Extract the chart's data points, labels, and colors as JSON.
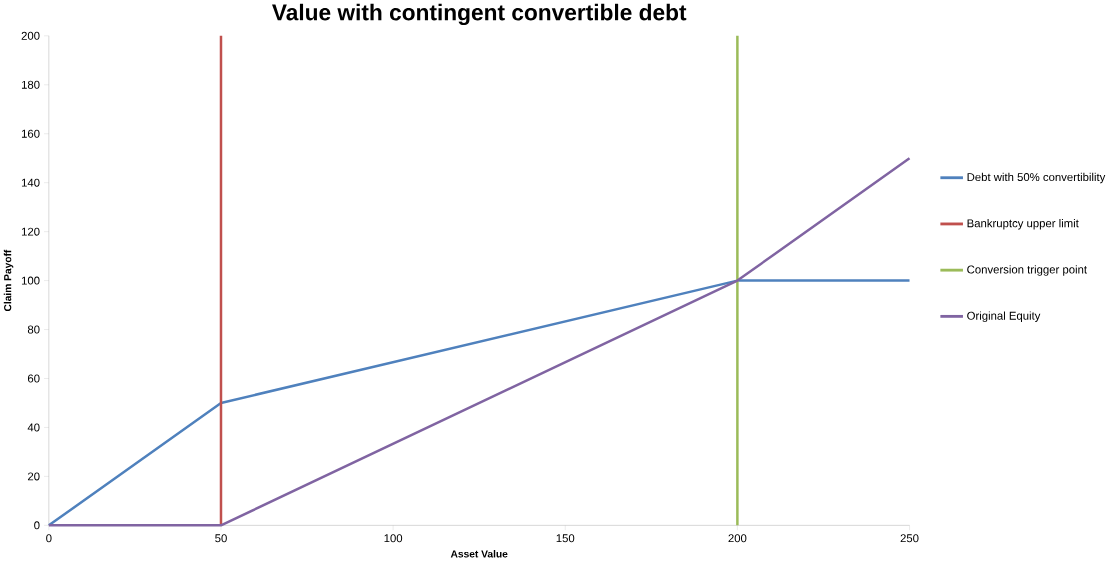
{
  "chart_data": {
    "type": "line",
    "title": "Value with contingent convertible debt",
    "xlabel": "Asset Value",
    "ylabel": "Claim Payoff",
    "xlim": [
      0,
      250
    ],
    "xticks": [
      0,
      50,
      100,
      150,
      200,
      250
    ],
    "ylim": [
      0,
      200
    ],
    "yticks": [
      0,
      20,
      40,
      60,
      80,
      100,
      120,
      140,
      160,
      180,
      200
    ],
    "grid": false,
    "legend": "right",
    "marker": "none",
    "line_style": "solid",
    "series": [
      {
        "name": "Debt with 50% convertibility",
        "color": "#4f81bd",
        "x": [
          0,
          50,
          200,
          250
        ],
        "values": [
          0,
          50,
          100,
          100
        ]
      },
      {
        "name": "Bankruptcy upper limit",
        "color": "#c0504d",
        "x": [
          50,
          50
        ],
        "values": [
          0,
          200
        ]
      },
      {
        "name": "Conversion trigger point",
        "color": "#9bbb59",
        "x": [
          200,
          200
        ],
        "values": [
          0,
          200
        ]
      },
      {
        "name": "Original Equity",
        "color": "#8064a2",
        "x": [
          0,
          50,
          200,
          250
        ],
        "values": [
          0,
          0,
          100,
          150
        ]
      }
    ]
  }
}
